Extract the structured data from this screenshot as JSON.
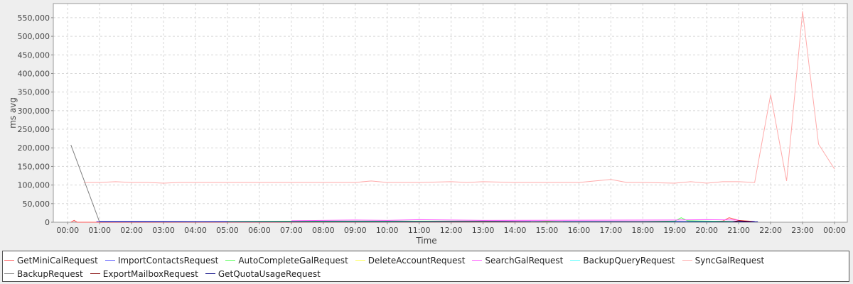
{
  "chart_data": {
    "type": "line",
    "x_label": "Time",
    "y_label": "ms avg",
    "xlim": [
      -0.45,
      24.4
    ],
    "ylim": [
      0,
      588000
    ],
    "grid": true,
    "xticks": [
      {
        "value": 0,
        "label": "00:00"
      },
      {
        "value": 1,
        "label": "01:00"
      },
      {
        "value": 2,
        "label": "02:00"
      },
      {
        "value": 3,
        "label": "03:00"
      },
      {
        "value": 4,
        "label": "04:00"
      },
      {
        "value": 5,
        "label": "05:00"
      },
      {
        "value": 6,
        "label": "06:00"
      },
      {
        "value": 7,
        "label": "07:00"
      },
      {
        "value": 8,
        "label": "08:00"
      },
      {
        "value": 9,
        "label": "09:00"
      },
      {
        "value": 10,
        "label": "10:00"
      },
      {
        "value": 11,
        "label": "11:00"
      },
      {
        "value": 12,
        "label": "12:00"
      },
      {
        "value": 13,
        "label": "13:00"
      },
      {
        "value": 14,
        "label": "14:00"
      },
      {
        "value": 15,
        "label": "15:00"
      },
      {
        "value": 16,
        "label": "16:00"
      },
      {
        "value": 17,
        "label": "17:00"
      },
      {
        "value": 18,
        "label": "18:00"
      },
      {
        "value": 19,
        "label": "19:00"
      },
      {
        "value": 20,
        "label": "20:00"
      },
      {
        "value": 21,
        "label": "21:00"
      },
      {
        "value": 22,
        "label": "22:00"
      },
      {
        "value": 23,
        "label": "23:00"
      },
      {
        "value": 24,
        "label": "00:00"
      }
    ],
    "yticks": [
      0,
      {
        "value": 50000,
        "label": "50,000"
      },
      {
        "value": 100000,
        "label": "100,000"
      },
      {
        "value": 150000,
        "label": "150,000"
      },
      {
        "value": 200000,
        "label": "200,000"
      },
      {
        "value": 250000,
        "label": "250,000"
      },
      {
        "value": 300000,
        "label": "300,000"
      },
      {
        "value": 350000,
        "label": "350,000"
      },
      {
        "value": 400000,
        "label": "400,000"
      },
      {
        "value": 450000,
        "label": "450,000"
      },
      {
        "value": 500000,
        "label": "500,000"
      },
      {
        "value": 550000,
        "label": "550,000"
      }
    ],
    "series": [
      {
        "name": "GetMiniCalRequest",
        "color": "#ff5555",
        "x": [
          0.1,
          0.2,
          0.3,
          18.5,
          19,
          20,
          20.5,
          20.7,
          21,
          21.5
        ],
        "values": [
          0,
          5000,
          0,
          1000,
          2000,
          1000,
          3000,
          12000,
          5000,
          2000
        ]
      },
      {
        "name": "ImportContactsRequest",
        "color": "#5555ff",
        "x": [
          0.9,
          2,
          4,
          6,
          8,
          10,
          12,
          13,
          14,
          16,
          18,
          20,
          21.5
        ],
        "values": [
          2000,
          2000,
          1500,
          2000,
          2000,
          2000,
          2000,
          3000,
          2000,
          1500,
          2000,
          2000,
          2000
        ]
      },
      {
        "name": "AutoCompleteGalRequest",
        "color": "#55ff55",
        "x": [
          5,
          8,
          10,
          13,
          15,
          18,
          19,
          19.2,
          19.4,
          20,
          21
        ],
        "values": [
          2000,
          3000,
          3000,
          3000,
          1000,
          2000,
          3000,
          12000,
          4000,
          3000,
          2000
        ]
      },
      {
        "name": "DeleteAccountRequest",
        "color": "#ffff55",
        "x": [
          14.5,
          15,
          15.5
        ],
        "values": [
          1000,
          3000,
          1000
        ]
      },
      {
        "name": "SearchGalRequest",
        "color": "#ff55ff",
        "x": [
          7,
          8,
          9,
          10,
          11,
          12,
          13,
          19,
          20,
          21
        ],
        "values": [
          4000,
          5000,
          6000,
          5000,
          7000,
          6000,
          5000,
          6000,
          7000,
          6000
        ]
      },
      {
        "name": "BackupQueryRequest",
        "color": "#55ffff",
        "x": [
          18.8,
          19.5,
          20.5,
          21.3
        ],
        "values": [
          1000,
          2000,
          1000,
          1000
        ]
      },
      {
        "name": "SyncGalRequest",
        "color": "#ffaaaa",
        "x": [
          0.5,
          1,
          1.5,
          2,
          2.5,
          3,
          3.5,
          4,
          5,
          6,
          7,
          8,
          9,
          9.5,
          10,
          11,
          12,
          12.5,
          13,
          14,
          15,
          16,
          17,
          17.5,
          18,
          19,
          19.5,
          20,
          20.5,
          21,
          21.5,
          22,
          22.5,
          23,
          23.5,
          24
        ],
        "values": [
          107000,
          107000,
          109000,
          107000,
          107000,
          105000,
          107000,
          107000,
          107000,
          107000,
          107000,
          107000,
          107000,
          111000,
          107000,
          107000,
          109000,
          107000,
          109000,
          107000,
          107000,
          107000,
          115000,
          107000,
          107000,
          105000,
          109000,
          105000,
          109000,
          109000,
          107000,
          343000,
          111000,
          567000,
          210000,
          143000
        ]
      },
      {
        "name": "BackupRequest",
        "color": "#808080",
        "x": [
          0.1,
          1.0
        ],
        "values": [
          208000,
          0
        ]
      },
      {
        "name": "ExportMailboxRequest",
        "color": "#800000",
        "x": [
          20.8,
          21,
          21.5
        ],
        "values": [
          1000,
          4000,
          1000
        ]
      },
      {
        "name": "GetQuotaUsageRequest",
        "color": "#000080",
        "x": [
          1,
          5,
          10,
          13,
          21,
          21.6
        ],
        "values": [
          1000,
          1000,
          1000,
          2000,
          1000,
          1000
        ]
      }
    ]
  }
}
